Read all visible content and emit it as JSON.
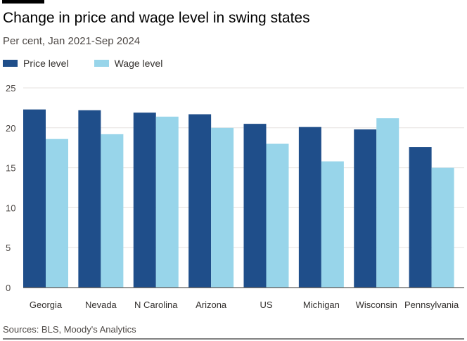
{
  "chart_data": {
    "type": "bar",
    "title": "Change in price and wage level in swing states",
    "subtitle": "Per cent, Jan 2021-Sep 2024",
    "categories": [
      "Georgia",
      "Nevada",
      "N Carolina",
      "Arizona",
      "US",
      "Michigan",
      "Wisconsin",
      "Pennsylvania"
    ],
    "series": [
      {
        "name": "Price level",
        "color": "#1f4e8a",
        "values": [
          22.3,
          22.2,
          21.9,
          21.7,
          20.5,
          20.1,
          19.8,
          17.6
        ]
      },
      {
        "name": "Wage level",
        "color": "#98d5ea",
        "values": [
          18.6,
          19.2,
          21.4,
          20.0,
          18.0,
          15.8,
          21.2,
          15.0
        ]
      }
    ],
    "yticks": [
      0,
      5,
      10,
      15,
      20,
      25
    ],
    "ylim": [
      0,
      25
    ],
    "xlabel": "",
    "ylabel": "",
    "grid": true,
    "legend": "top-left",
    "source": "Sources: BLS, Moody's Analytics"
  }
}
